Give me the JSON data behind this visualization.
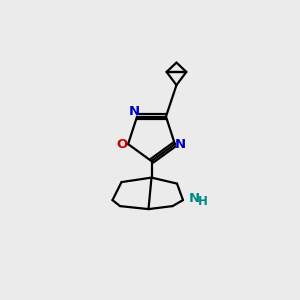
{
  "bg_color": "#ebebeb",
  "bond_color": "#000000",
  "N_color": "#0000cc",
  "O_color": "#cc0000",
  "NH_color": "#008888",
  "line_width": 1.6,
  "font_size": 9.5,
  "fig_w": 3.0,
  "fig_h": 3.0,
  "dpi": 100,
  "xlim": [
    0,
    10
  ],
  "ylim": [
    0,
    10
  ]
}
